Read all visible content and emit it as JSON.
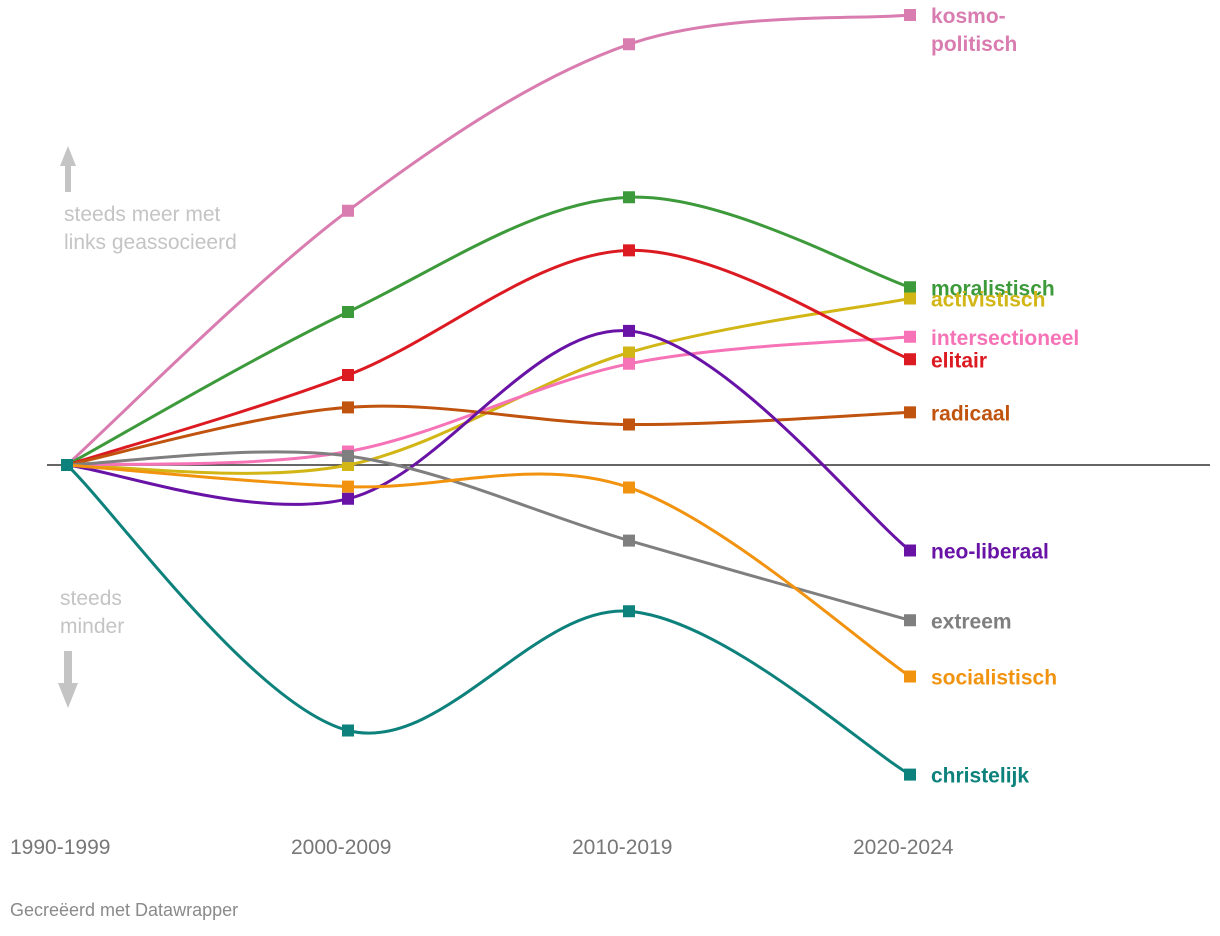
{
  "chart_data": {
    "type": "line",
    "title": "",
    "xlabel": "",
    "ylabel": "",
    "x": [
      "1990-1999",
      "2000-2009",
      "2010-2019",
      "2020-2024"
    ],
    "ylim": [
      -0.8,
      1.0
    ],
    "baseline": 0,
    "grid": false,
    "smooth": true,
    "series": [
      {
        "name": "kosmo-politisch",
        "label_lines": [
          "kosmo-",
          "politisch"
        ],
        "color": "#d97cb0",
        "values": [
          0,
          0.565,
          0.935,
          1.0
        ]
      },
      {
        "name": "moralistisch",
        "label_lines": [
          "moralistisch"
        ],
        "color": "#3d9a3b",
        "values": [
          0,
          0.34,
          0.595,
          0.395
        ]
      },
      {
        "name": "activistisch",
        "label_lines": [
          "activistisch"
        ],
        "color": "#d2b616",
        "values": [
          0,
          0,
          0.25,
          0.37
        ]
      },
      {
        "name": "intersectioneel",
        "label_lines": [
          "intersectioneel"
        ],
        "color": "#f573b6",
        "values": [
          0,
          0.03,
          0.225,
          0.285
        ]
      },
      {
        "name": "elitair",
        "label_lines": [
          "elitair"
        ],
        "color": "#dc1a22",
        "values": [
          0,
          0.2,
          0.477,
          0.235
        ]
      },
      {
        "name": "radicaal",
        "label_lines": [
          "radicaal"
        ],
        "color": "#c0530e",
        "values": [
          0,
          0.128,
          0.09,
          0.117
        ]
      },
      {
        "name": "neo-liberaal",
        "label_lines": [
          "neo-liberaal"
        ],
        "color": "#6812a6",
        "values": [
          0,
          -0.075,
          0.298,
          -0.19
        ]
      },
      {
        "name": "extreem",
        "label_lines": [
          "extreem"
        ],
        "color": "#7f7f7f",
        "values": [
          0,
          0.02,
          -0.168,
          -0.345
        ]
      },
      {
        "name": "socialistisch",
        "label_lines": [
          "socialistisch"
        ],
        "color": "#f2930f",
        "values": [
          0,
          -0.048,
          -0.05,
          -0.47
        ]
      },
      {
        "name": "christelijk",
        "label_lines": [
          "christelijk"
        ],
        "color": "#0d817b",
        "values": [
          0,
          -0.59,
          -0.325,
          -0.688
        ]
      }
    ],
    "annotations": {
      "up": [
        "steeds meer met",
        "links geassocieerd"
      ],
      "down": [
        "steeds",
        "minder"
      ]
    }
  },
  "footer": {
    "credit": "Gecreëerd met Datawrapper"
  }
}
